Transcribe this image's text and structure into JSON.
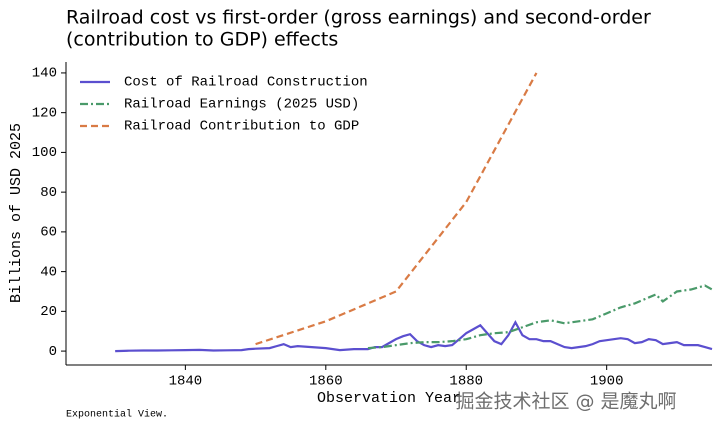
{
  "chart_data": {
    "type": "line",
    "title": "Railroad cost vs first-order (gross earnings) and second-order",
    "subtitle": "(contribution to GDP) effects",
    "x_label": "Observation Year",
    "y_label": "Billions of USD 2025",
    "source": "Exponential View.",
    "watermark": "掘金技术社区 @ 是魔丸啊",
    "xlim": [
      1823,
      1915
    ],
    "xticks": [
      1840,
      1860,
      1880,
      1900
    ],
    "ylim": [
      -7,
      145.5
    ],
    "yticks": [
      0,
      20,
      40,
      60,
      80,
      100,
      120,
      140
    ],
    "grid": false,
    "legend": "upper left",
    "series": [
      {
        "name": "Cost of Railroad Construction",
        "color": "#5b4fcf",
        "linestyle": "solid",
        "x": [
          1830,
          1832,
          1834,
          1836,
          1838,
          1840,
          1842,
          1844,
          1846,
          1848,
          1849,
          1850,
          1852,
          1853,
          1854,
          1855,
          1856,
          1858,
          1860,
          1862,
          1864,
          1866,
          1867,
          1868,
          1869,
          1870,
          1871,
          1872,
          1873,
          1874,
          1875,
          1876,
          1877,
          1878,
          1879,
          1880,
          1881,
          1882,
          1883,
          1884,
          1885,
          1886,
          1887,
          1888,
          1889,
          1890,
          1891,
          1892,
          1893,
          1894,
          1895,
          1896,
          1897,
          1898,
          1899,
          1900,
          1901,
          1902,
          1903,
          1904,
          1905,
          1906,
          1907,
          1908,
          1909,
          1910,
          1911,
          1912,
          1913,
          1914,
          1915
        ],
        "values": [
          0,
          0.2,
          0.3,
          0.3,
          0.4,
          0.5,
          0.6,
          0.3,
          0.4,
          0.5,
          1,
          1.2,
          1.5,
          2.5,
          3.5,
          2,
          2.5,
          2,
          1.5,
          0.5,
          1,
          1,
          2,
          2,
          4,
          6,
          7.5,
          8.5,
          5,
          3,
          2,
          3,
          2.5,
          3,
          6,
          9,
          11,
          13,
          9,
          5,
          3.5,
          8,
          14.5,
          8,
          6,
          6,
          5,
          5,
          3.5,
          2,
          1.5,
          2,
          2.5,
          3.5,
          5,
          5.5,
          6,
          6.5,
          6,
          4,
          4.5,
          6,
          5.5,
          3.5,
          4,
          4.5,
          3,
          3,
          3,
          2,
          1
        ]
      },
      {
        "name": "Railroad Earnings (2025 USD)",
        "color": "#4a9a6a",
        "linestyle": "dashdot",
        "x": [
          1866,
          1868,
          1870,
          1872,
          1874,
          1876,
          1878,
          1880,
          1882,
          1884,
          1886,
          1888,
          1890,
          1892,
          1894,
          1896,
          1898,
          1900,
          1902,
          1904,
          1906,
          1907,
          1908,
          1910,
          1912,
          1914,
          1915
        ],
        "values": [
          1.5,
          2,
          3,
          4,
          4.5,
          4.5,
          5,
          6,
          8,
          9,
          9.5,
          12,
          14.5,
          15.5,
          14,
          15,
          16,
          19,
          22,
          24,
          27,
          28.5,
          25,
          30,
          31,
          33,
          31
        ]
      },
      {
        "name": "Railroad Contribution to GDP",
        "color": "#d97b45",
        "linestyle": "dashed",
        "x": [
          1850,
          1860,
          1870,
          1880,
          1890
        ],
        "values": [
          3.5,
          15,
          30,
          75,
          140
        ]
      }
    ]
  }
}
